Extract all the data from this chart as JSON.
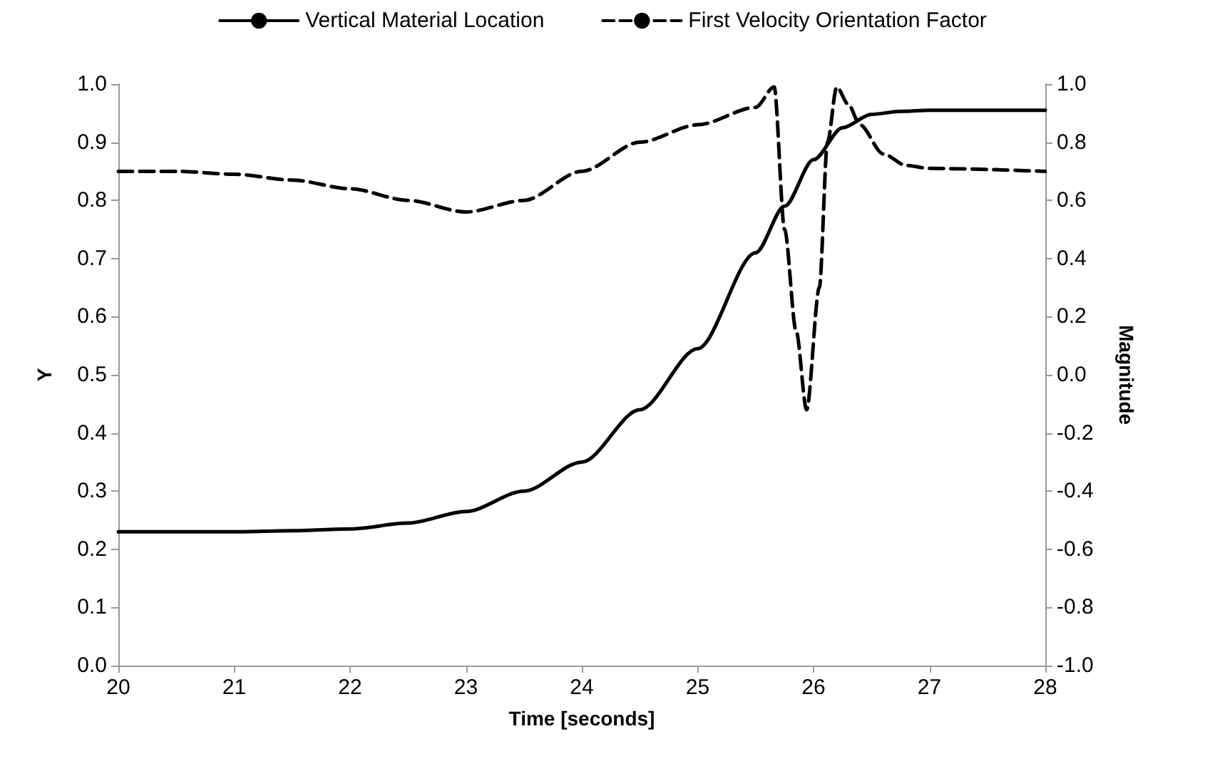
{
  "chart_data": {
    "type": "line",
    "xlabel": "Time [seconds]",
    "ylabel": "Y",
    "y2label": "Magnitude",
    "xlim": [
      20,
      28
    ],
    "xticks": [
      20,
      21,
      22,
      23,
      24,
      25,
      26,
      27,
      28
    ],
    "ylim": [
      0,
      1
    ],
    "yticks": [
      {
        "value": 0,
        "label": "0.0"
      },
      0.1,
      0.2,
      0.3,
      0.4,
      0.5,
      0.6,
      0.7,
      0.8,
      0.9,
      {
        "value": 1,
        "label": "1.0"
      }
    ],
    "y2lim": [
      -1,
      1
    ],
    "y2ticks": [
      {
        "value": -1,
        "label": "-1.0"
      },
      -0.8,
      -0.6,
      -0.4,
      -0.2,
      {
        "value": 0,
        "label": "0.0"
      },
      0.2,
      0.4,
      0.6,
      0.8,
      {
        "value": 1,
        "label": "1.0"
      }
    ],
    "grid": false,
    "legend": "top",
    "marker": "none",
    "series": [
      {
        "name": "Vertical Material Location",
        "color": "#000000",
        "line_style": "solid",
        "x": [
          20,
          21,
          21.5,
          22,
          22.5,
          23,
          23.5,
          24,
          24.5,
          25,
          25.5,
          25.75,
          26,
          26.25,
          26.5,
          26.75,
          27,
          28
        ],
        "values": [
          0.23,
          0.23,
          0.232,
          0.235,
          0.245,
          0.265,
          0.3,
          0.35,
          0.44,
          0.545,
          0.71,
          0.79,
          0.87,
          0.925,
          0.948,
          0.953,
          0.955,
          0.955
        ]
      },
      {
        "name": "First Velocity Orientation Factor",
        "color": "#000000",
        "line_style": "dashed",
        "axis": "y2",
        "x": [
          20,
          20.5,
          21,
          21.5,
          22,
          22.5,
          23,
          23.5,
          24,
          24.5,
          25,
          25.5,
          25.66,
          25.75,
          25.85,
          25.94,
          26.05,
          26.12,
          26.2,
          26.3,
          26.4,
          26.6,
          26.8,
          27,
          28
        ],
        "values": [
          0.7,
          0.7,
          0.69,
          0.67,
          0.64,
          0.6,
          0.56,
          0.6,
          0.7,
          0.8,
          0.86,
          0.92,
          0.99,
          0.5,
          0.15,
          -0.12,
          0.3,
          0.8,
          0.99,
          0.93,
          0.86,
          0.76,
          0.72,
          0.71,
          0.7
        ]
      }
    ]
  }
}
